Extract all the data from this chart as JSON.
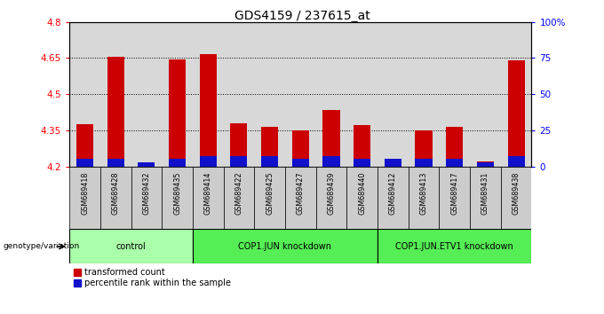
{
  "title": "GDS4159 / 237615_at",
  "samples": [
    "GSM689418",
    "GSM689428",
    "GSM689432",
    "GSM689435",
    "GSM689414",
    "GSM689422",
    "GSM689425",
    "GSM689427",
    "GSM689439",
    "GSM689440",
    "GSM689412",
    "GSM689413",
    "GSM689417",
    "GSM689431",
    "GSM689438"
  ],
  "transformed_counts": [
    4.375,
    4.655,
    4.215,
    4.645,
    4.665,
    4.38,
    4.365,
    4.35,
    4.435,
    4.37,
    4.225,
    4.35,
    4.365,
    4.22,
    4.64
  ],
  "percentile_ranks": [
    5,
    5,
    3,
    5,
    7,
    7,
    7,
    5,
    7,
    5,
    5,
    5,
    5,
    3,
    7
  ],
  "groups": [
    {
      "label": "control",
      "start": 0,
      "end": 4
    },
    {
      "label": "COP1.JUN knockdown",
      "start": 4,
      "end": 10
    },
    {
      "label": "COP1.JUN.ETV1 knockdown",
      "start": 10,
      "end": 15
    }
  ],
  "ymin": 4.2,
  "ymax": 4.8,
  "yticks": [
    4.2,
    4.35,
    4.5,
    4.65,
    4.8
  ],
  "ytick_labels": [
    "4.2",
    "4.35",
    "4.5",
    "4.65",
    "4.8"
  ],
  "right_yticks": [
    0,
    25,
    50,
    75,
    100
  ],
  "right_ytick_labels": [
    "0",
    "25",
    "50",
    "75",
    "100%"
  ],
  "bar_color_red": "#cc0000",
  "bar_color_blue": "#1111cc",
  "axis_bg": "#d8d8d8",
  "xtick_bg": "#cccccc",
  "group_bg_light": "#aaffaa",
  "group_bg_dark": "#55ee55"
}
